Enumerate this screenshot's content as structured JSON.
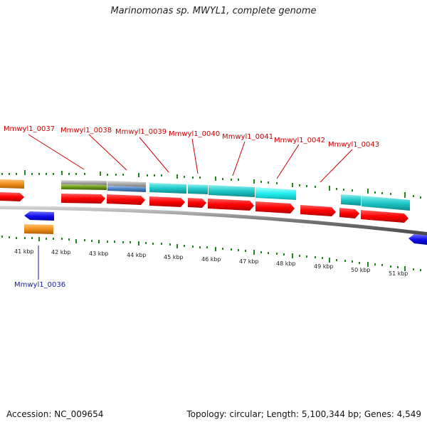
{
  "title": "Marinomonas sp. MWYL1, complete genome",
  "footer": {
    "accession": "Accession: NC_009654",
    "summary": "Topology: circular; Length: 5,100,344 bp; Genes: 4,549"
  },
  "colors": {
    "cds": "#ff0000",
    "rna_cyan": "#1ec8c8",
    "rna_cyan_light": "#22eeee",
    "grey": "#aaaaaa",
    "green": "#6a9a1a",
    "steelblue": "#4a80c0",
    "orange": "#f0901a",
    "blue": "#1111ee",
    "backbone": "#888888",
    "gc_ticks": "#228822",
    "label_red": "#cc0000",
    "label_blue": "#1a1aaa"
  },
  "scale_labels": [
    "41 kbp",
    "42 kbp",
    "43 kbp",
    "44 kbp",
    "45 kbp",
    "46 kbp",
    "47 kbp",
    "48 kbp",
    "49 kbp",
    "50 kbp",
    "51 kbp"
  ],
  "gene_labels": [
    "Mmwyl1_0037",
    "Mmwyl1_0038",
    "Mmwyl1_0039",
    "Mmwyl1_0040",
    "Mmwyl1_0041",
    "Mmwyl1_0042",
    "Mmwyl1_0043"
  ],
  "gene_label_below": "Mmwyl1_0036"
}
